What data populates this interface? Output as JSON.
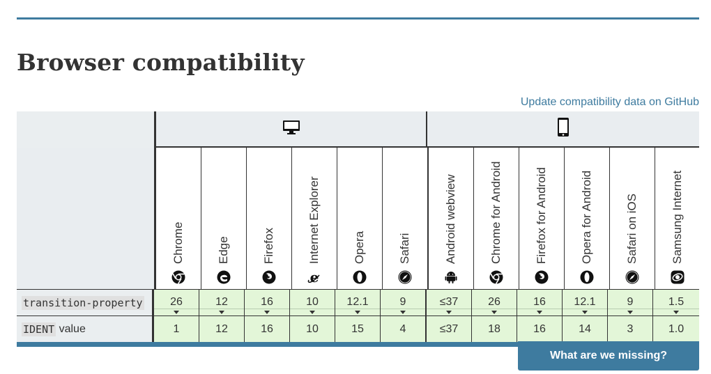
{
  "section": {
    "heading": "Browser compatibility",
    "github_link": "Update compatibility data on GitHub",
    "missing_button": "What are we missing?"
  },
  "groups": [
    {
      "name": "desktop",
      "icon": "desktop-icon"
    },
    {
      "name": "mobile",
      "icon": "mobile-icon"
    }
  ],
  "browsers": [
    {
      "name": "Chrome",
      "icon": "chrome-icon"
    },
    {
      "name": "Edge",
      "icon": "edge-icon"
    },
    {
      "name": "Firefox",
      "icon": "firefox-icon"
    },
    {
      "name": "Internet Explorer",
      "icon": "ie-icon"
    },
    {
      "name": "Opera",
      "icon": "opera-icon"
    },
    {
      "name": "Safari",
      "icon": "safari-icon"
    },
    {
      "name": "Android webview",
      "icon": "android-icon"
    },
    {
      "name": "Chrome for Android",
      "icon": "chrome-icon"
    },
    {
      "name": "Firefox for Android",
      "icon": "firefox-icon"
    },
    {
      "name": "Opera for Android",
      "icon": "opera-icon"
    },
    {
      "name": "Safari on iOS",
      "icon": "safari-icon"
    },
    {
      "name": "Samsung Internet",
      "icon": "samsung-icon"
    }
  ],
  "rows": [
    {
      "feature_code": "transition-property",
      "feature_suffix": "",
      "values": [
        "26",
        "12",
        "16",
        "10",
        "12.1",
        "9",
        "≤37",
        "26",
        "16",
        "12.1",
        "9",
        "1.5"
      ]
    },
    {
      "feature_code": "IDENT",
      "feature_suffix": " value",
      "values": [
        "1",
        "12",
        "16",
        "10",
        "15",
        "4",
        "≤37",
        "18",
        "16",
        "14",
        "3",
        "1.0"
      ]
    }
  ],
  "colors": {
    "accent": "#3e7b9f",
    "supported": "#e3f6d8",
    "header_bg": "#eaeef0"
  }
}
